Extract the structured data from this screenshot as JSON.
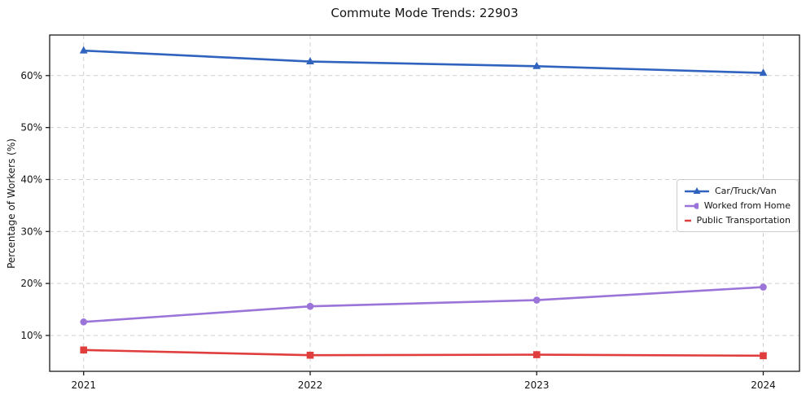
{
  "chart_data": {
    "type": "line",
    "title": "Commute Mode Trends: 22903",
    "xlabel": "",
    "ylabel": "Percentage of Workers (%)",
    "x": [
      2021,
      2022,
      2023,
      2024
    ],
    "x_tick_labels": [
      "2021",
      "2022",
      "2023",
      "2024"
    ],
    "y_ticks": [
      10,
      20,
      30,
      40,
      50,
      60
    ],
    "y_tick_labels": [
      "10%",
      "20%",
      "30%",
      "40%",
      "50%",
      "60%"
    ],
    "xlim": [
      2020.85,
      2024.16
    ],
    "ylim": [
      3.1,
      67.8
    ],
    "grid": true,
    "grid_style": "dashed",
    "grid_color": "#cfcfcf",
    "axes_color": "#1a1a1a",
    "legend_position": "center right",
    "series": [
      {
        "name": "Car/Truck/Van",
        "color": "#2f63be",
        "marker": "triangle",
        "values": [
          64.8,
          62.7,
          61.8,
          60.5
        ]
      },
      {
        "name": "Worked from Home",
        "color": "#9a74d8",
        "marker": "circle",
        "values": [
          12.6,
          15.6,
          16.8,
          19.3
        ]
      },
      {
        "name": "Public Transportation",
        "color": "#e03d3d",
        "marker": "square",
        "values": [
          7.2,
          6.2,
          6.3,
          6.1
        ]
      }
    ]
  }
}
